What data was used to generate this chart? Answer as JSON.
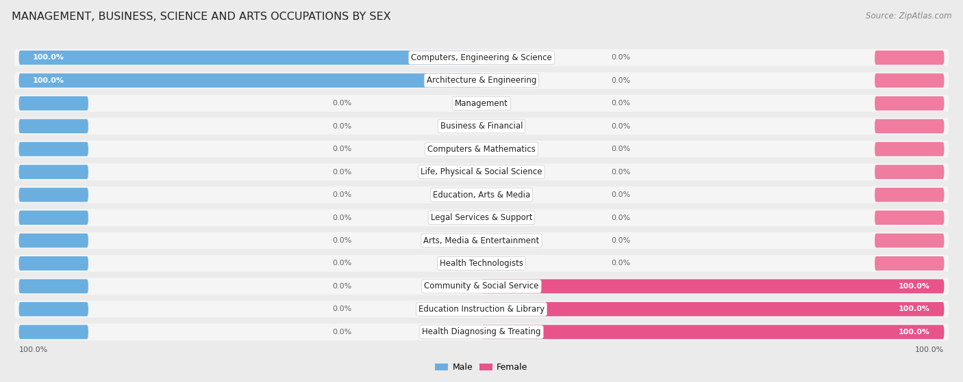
{
  "title": "MANAGEMENT, BUSINESS, SCIENCE AND ARTS OCCUPATIONS BY SEX",
  "source": "Source: ZipAtlas.com",
  "categories": [
    "Computers, Engineering & Science",
    "Architecture & Engineering",
    "Management",
    "Business & Financial",
    "Computers & Mathematics",
    "Life, Physical & Social Science",
    "Education, Arts & Media",
    "Legal Services & Support",
    "Arts, Media & Entertainment",
    "Health Technologists",
    "Community & Social Service",
    "Education Instruction & Library",
    "Health Diagnosing & Treating"
  ],
  "male_values": [
    100.0,
    100.0,
    0.0,
    0.0,
    0.0,
    0.0,
    0.0,
    0.0,
    0.0,
    0.0,
    0.0,
    0.0,
    0.0
  ],
  "female_values": [
    0.0,
    0.0,
    0.0,
    0.0,
    0.0,
    0.0,
    0.0,
    0.0,
    0.0,
    0.0,
    100.0,
    100.0,
    100.0
  ],
  "male_color": "#6aafe0",
  "female_color": "#f07ca0",
  "female_100_color": "#e8538a",
  "background_color": "#ebebeb",
  "row_bg_color": "#f5f5f5",
  "title_fontsize": 11.5,
  "label_fontsize": 8.5,
  "value_fontsize": 8.0,
  "legend_fontsize": 9,
  "source_fontsize": 8.5,
  "bar_max": 100.0,
  "left_axis_label": "100.0%",
  "right_axis_label": "100.0%",
  "stub_size": 15.0
}
